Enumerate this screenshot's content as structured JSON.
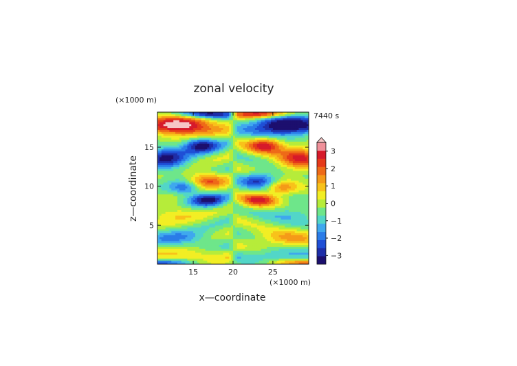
{
  "chart_data": {
    "type": "heatmap",
    "title": "zonal velocity",
    "xlabel": "x—coordinate",
    "ylabel": "z—coordinate",
    "x_unit": "(×1000 m)",
    "y_unit": "(×1000 m)",
    "time_label": "7440 s",
    "xlim": [
      10.5,
      29.5
    ],
    "ylim": [
      0,
      19.5
    ],
    "x_ticks": [
      15,
      20,
      25
    ],
    "y_ticks": [
      5,
      10,
      15
    ],
    "colorbar": {
      "ticks": [
        3,
        2,
        1,
        0,
        -1,
        -2,
        -3
      ],
      "range": [
        -3.5,
        3.5
      ],
      "step": 0.5,
      "colors": [
        "#1c0f6e",
        "#1e2ea8",
        "#1f4fd6",
        "#2a7ce8",
        "#3fa8ee",
        "#52d6c8",
        "#6ee68a",
        "#b6ec3a",
        "#f2ee24",
        "#f8c21a",
        "#f59a18",
        "#ee6a18",
        "#e53a1a",
        "#d61a2a",
        "#f0909a"
      ],
      "over_color": "#f6c6c6"
    },
    "field": {
      "description": "wave-like pattern symmetric about x = 20",
      "center_x": 20
    }
  }
}
